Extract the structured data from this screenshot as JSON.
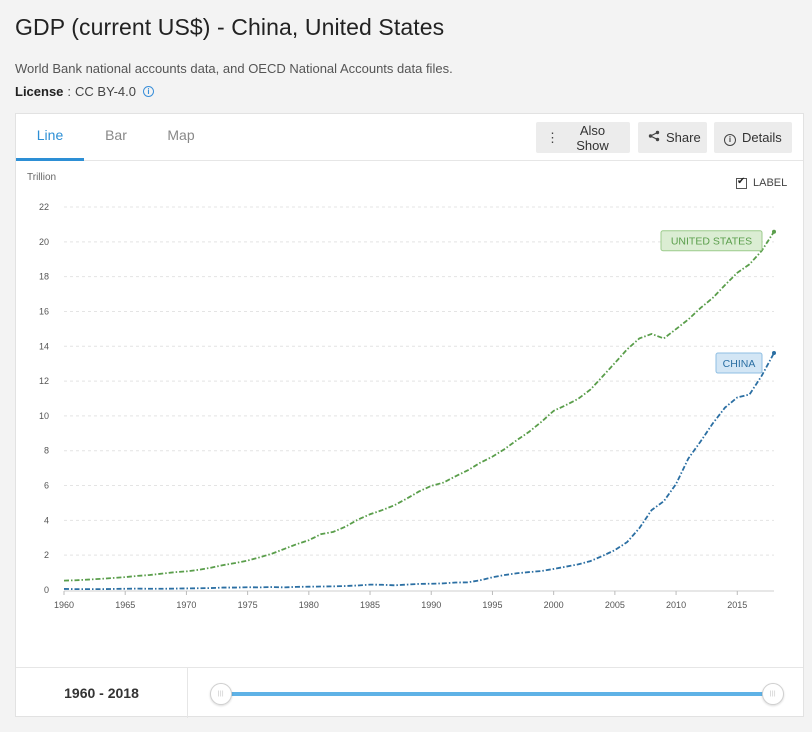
{
  "page": {
    "title": "GDP (current US$) - China, United States",
    "source": "World Bank national accounts data, and OECD National Accounts data files.",
    "license_label": "License",
    "license_value": "CC BY-4.0"
  },
  "tabs": [
    {
      "label": "Line",
      "active": true
    },
    {
      "label": "Bar",
      "active": false
    },
    {
      "label": "Map",
      "active": false
    }
  ],
  "toolbar": {
    "also_show": "Also Show",
    "share": "Share",
    "details": "Details"
  },
  "label_toggle": {
    "text": "LABEL",
    "checked": true
  },
  "range": {
    "label": "1960 - 2018"
  },
  "colors": {
    "us": "#5a9e4b",
    "china": "#2b6fa3",
    "accent": "#2d8fd5"
  },
  "chart_data": {
    "type": "line",
    "ylabel": "Trillion",
    "xlim": [
      1960,
      2018
    ],
    "ylim": [
      0,
      22
    ],
    "yticks": [
      0,
      2,
      4,
      6,
      8,
      10,
      12,
      14,
      16,
      18,
      20,
      22
    ],
    "xticks": [
      1960,
      1965,
      1970,
      1975,
      1980,
      1985,
      1990,
      1995,
      2000,
      2005,
      2010,
      2015
    ],
    "grid": true,
    "x": [
      1960,
      1961,
      1962,
      1963,
      1964,
      1965,
      1966,
      1967,
      1968,
      1969,
      1970,
      1971,
      1972,
      1973,
      1974,
      1975,
      1976,
      1977,
      1978,
      1979,
      1980,
      1981,
      1982,
      1983,
      1984,
      1985,
      1986,
      1987,
      1988,
      1989,
      1990,
      1991,
      1992,
      1993,
      1994,
      1995,
      1996,
      1997,
      1998,
      1999,
      2000,
      2001,
      2002,
      2003,
      2004,
      2005,
      2006,
      2007,
      2008,
      2009,
      2010,
      2011,
      2012,
      2013,
      2014,
      2015,
      2016,
      2017,
      2018
    ],
    "series": [
      {
        "name": "UNITED STATES",
        "values": [
          0.54,
          0.56,
          0.6,
          0.64,
          0.69,
          0.74,
          0.81,
          0.86,
          0.94,
          1.02,
          1.07,
          1.16,
          1.28,
          1.43,
          1.55,
          1.69,
          1.88,
          2.09,
          2.36,
          2.63,
          2.86,
          3.21,
          3.34,
          3.64,
          4.04,
          4.35,
          4.59,
          4.87,
          5.25,
          5.66,
          5.98,
          6.17,
          6.54,
          6.88,
          7.31,
          7.66,
          8.1,
          8.61,
          9.09,
          9.66,
          10.29,
          10.62,
          10.98,
          11.51,
          12.27,
          13.04,
          13.82,
          14.45,
          14.71,
          14.45,
          14.99,
          15.54,
          16.2,
          16.78,
          17.52,
          18.22,
          18.71,
          19.49,
          20.58
        ]
      },
      {
        "name": "CHINA",
        "values": [
          0.06,
          0.05,
          0.05,
          0.05,
          0.06,
          0.07,
          0.08,
          0.07,
          0.07,
          0.08,
          0.09,
          0.1,
          0.11,
          0.14,
          0.14,
          0.16,
          0.15,
          0.17,
          0.15,
          0.18,
          0.19,
          0.2,
          0.21,
          0.23,
          0.26,
          0.31,
          0.3,
          0.27,
          0.31,
          0.35,
          0.36,
          0.38,
          0.43,
          0.44,
          0.56,
          0.73,
          0.86,
          0.96,
          1.03,
          1.09,
          1.21,
          1.34,
          1.47,
          1.66,
          1.96,
          2.29,
          2.75,
          3.55,
          4.59,
          5.1,
          6.09,
          7.55,
          8.53,
          9.57,
          10.48,
          11.06,
          11.23,
          12.31,
          13.61
        ]
      }
    ]
  }
}
